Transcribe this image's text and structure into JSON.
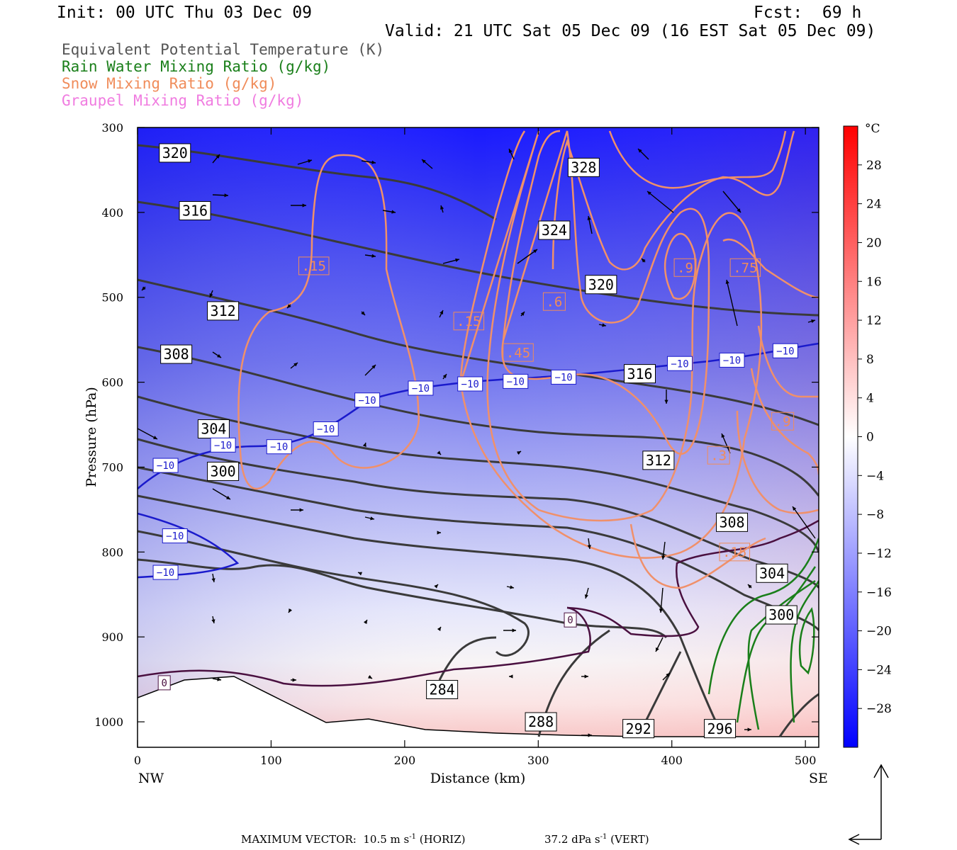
{
  "header": {
    "init": "Init: 00 UTC Thu 03 Dec 09",
    "fcst": "Fcst:  69 h",
    "valid": "Valid: 21 UTC Sat 05 Dec 09 (16 EST Sat 05 Dec 09)"
  },
  "legend": [
    {
      "label": "Equivalent Potential Temperature (K)",
      "color": "#555555"
    },
    {
      "label": "Rain Water Mixing Ratio (g/kg)",
      "color": "#1a7f1a"
    },
    {
      "label": "Snow Mixing Ratio (g/kg)",
      "color": "#f08c5a"
    },
    {
      "label": "Graupel Mixing Ratio (g/kg)",
      "color": "#f07ce0"
    }
  ],
  "footer": {
    "max_vector": "MAXIMUM VECTOR:  10.5 m s",
    "max_vector_sup": "-1",
    "max_vector_tail": " (HORIZ)",
    "vert": "37.2 dPa s",
    "vert_sup": "-1",
    "vert_tail": " (VERT)"
  },
  "chart_data": {
    "type": "heatmap",
    "xlabel": "Distance (km)",
    "ylabel": "Pressure (hPa)",
    "x_ticks": [
      0,
      100,
      200,
      300,
      400,
      500
    ],
    "y_ticks": [
      300,
      400,
      500,
      600,
      700,
      800,
      900,
      1000
    ],
    "xlim": [
      0,
      510
    ],
    "ylim": [
      300,
      1030
    ],
    "x_end_labels": {
      "left": "NW",
      "right": "SE"
    },
    "colorbar": {
      "unit": "°C",
      "tick_labels": [
        "28",
        "24",
        "20",
        "16",
        "12",
        "8",
        "4",
        "0",
        "−4",
        "−8",
        "−12",
        "−16",
        "−20",
        "−24",
        "−28"
      ],
      "tick_values": [
        28,
        24,
        20,
        16,
        12,
        8,
        4,
        0,
        -4,
        -8,
        -12,
        -16,
        -20,
        -24,
        -28
      ],
      "range": [
        -32,
        32
      ]
    },
    "theta_e_labels": [
      {
        "text": "320",
        "x": 28,
        "p": 330
      },
      {
        "text": "316",
        "x": 43,
        "p": 398
      },
      {
        "text": "312",
        "x": 64,
        "p": 516
      },
      {
        "text": "308",
        "x": 29,
        "p": 567
      },
      {
        "text": "304",
        "x": 57,
        "p": 655
      },
      {
        "text": "300",
        "x": 64,
        "p": 705
      },
      {
        "text": "328",
        "x": 334,
        "p": 347
      },
      {
        "text": "324",
        "x": 312,
        "p": 421
      },
      {
        "text": "320",
        "x": 347,
        "p": 485
      },
      {
        "text": "316",
        "x": 376,
        "p": 590
      },
      {
        "text": "312",
        "x": 390,
        "p": 692
      },
      {
        "text": "308",
        "x": 445,
        "p": 765
      },
      {
        "text": "304",
        "x": 475,
        "p": 825
      },
      {
        "text": "300",
        "x": 482,
        "p": 874
      },
      {
        "text": "284",
        "x": 228,
        "p": 962
      },
      {
        "text": "288",
        "x": 302,
        "p": 1000
      },
      {
        "text": "292",
        "x": 375,
        "p": 1008
      },
      {
        "text": "296",
        "x": 436,
        "p": 1008
      }
    ],
    "snow_labels": [
      {
        "text": ".15",
        "x": 132,
        "p": 463
      },
      {
        "text": ".15",
        "x": 248,
        "p": 528
      },
      {
        "text": ".6",
        "x": 312,
        "p": 505
      },
      {
        "text": ".45",
        "x": 285,
        "p": 565
      },
      {
        "text": ".9",
        "x": 410,
        "p": 465
      },
      {
        "text": ".75",
        "x": 455,
        "p": 465
      },
      {
        "text": ".9",
        "x": 483,
        "p": 646
      },
      {
        "text": ".3",
        "x": 435,
        "p": 686
      },
      {
        "text": ".15",
        "x": 447,
        "p": 800
      }
    ],
    "temp_labels": [
      {
        "text": "−10",
        "x": 21,
        "p": 698
      },
      {
        "text": "−10",
        "x": 64,
        "p": 674
      },
      {
        "text": "−10",
        "x": 106,
        "p": 676
      },
      {
        "text": "−10",
        "x": 141,
        "p": 655
      },
      {
        "text": "−10",
        "x": 172,
        "p": 621
      },
      {
        "text": "−10",
        "x": 212,
        "p": 607
      },
      {
        "text": "−10",
        "x": 249,
        "p": 602
      },
      {
        "text": "−10",
        "x": 283,
        "p": 599
      },
      {
        "text": "−10",
        "x": 319,
        "p": 594
      },
      {
        "text": "−10",
        "x": 406,
        "p": 578
      },
      {
        "text": "−10",
        "x": 445,
        "p": 574
      },
      {
        "text": "−10",
        "x": 485,
        "p": 563
      },
      {
        "text": "−10",
        "x": 28,
        "p": 781
      },
      {
        "text": "−10",
        "x": 21,
        "p": 824
      },
      {
        "text": "0",
        "x": 20,
        "p": 954
      },
      {
        "text": "0",
        "x": 324,
        "p": 880
      }
    ]
  }
}
